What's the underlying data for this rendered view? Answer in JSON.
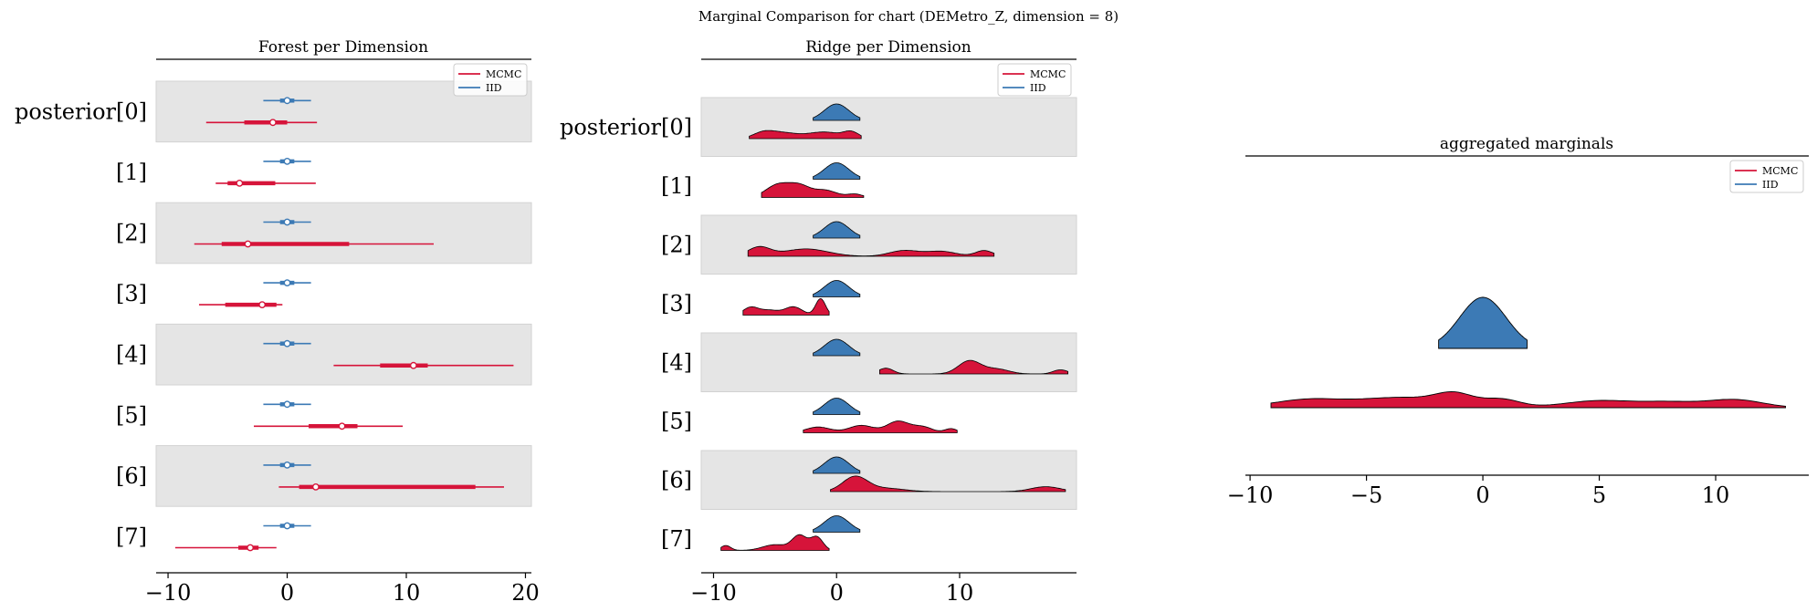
{
  "suptitle": "Marginal Comparison for chart (DEMetro_Z, dimension = 8)",
  "colors": {
    "mcmc": "#d6143a",
    "iid": "#3c7ab5",
    "band": "#e5e5e5",
    "axis": "#000000"
  },
  "chart_data": [
    {
      "type": "forest",
      "title": "Forest per Dimension",
      "row_labels": [
        "posterior[0]",
        "[1]",
        "[2]",
        "[3]",
        "[4]",
        "[5]",
        "[6]",
        "[7]"
      ],
      "xlim": [
        -11,
        20.5
      ],
      "xticks": [
        -10,
        0,
        10,
        20
      ],
      "xtick_labels": [
        "−10",
        "0",
        "10",
        "20"
      ],
      "legend": {
        "placement": "top-right",
        "entries": [
          "MCMC",
          "IID"
        ]
      },
      "series": [
        {
          "name": "IID",
          "rows": [
            {
              "lo": -2.0,
              "q1": -0.6,
              "med": 0.0,
              "q3": 0.6,
              "hi": 2.0
            },
            {
              "lo": -2.0,
              "q1": -0.6,
              "med": 0.0,
              "q3": 0.6,
              "hi": 2.0
            },
            {
              "lo": -2.0,
              "q1": -0.6,
              "med": 0.0,
              "q3": 0.6,
              "hi": 2.0
            },
            {
              "lo": -2.0,
              "q1": -0.6,
              "med": 0.0,
              "q3": 0.6,
              "hi": 2.0
            },
            {
              "lo": -2.0,
              "q1": -0.6,
              "med": 0.0,
              "q3": 0.6,
              "hi": 2.0
            },
            {
              "lo": -2.0,
              "q1": -0.6,
              "med": 0.0,
              "q3": 0.6,
              "hi": 2.0
            },
            {
              "lo": -2.0,
              "q1": -0.6,
              "med": 0.0,
              "q3": 0.6,
              "hi": 2.0
            },
            {
              "lo": -2.0,
              "q1": -0.6,
              "med": 0.0,
              "q3": 0.6,
              "hi": 2.0
            }
          ]
        },
        {
          "name": "MCMC",
          "rows": [
            {
              "lo": -6.8,
              "q1": -3.6,
              "med": -1.2,
              "q3": 0.0,
              "hi": 2.5
            },
            {
              "lo": -6.0,
              "q1": -5.0,
              "med": -4.0,
              "q3": -1.0,
              "hi": 2.4
            },
            {
              "lo": -7.8,
              "q1": -5.5,
              "med": -3.3,
              "q3": 5.2,
              "hi": 12.3
            },
            {
              "lo": -7.4,
              "q1": -5.2,
              "med": -2.1,
              "q3": -0.9,
              "hi": -0.4
            },
            {
              "lo": 3.9,
              "q1": 7.8,
              "med": 10.6,
              "q3": 11.8,
              "hi": 19.0
            },
            {
              "lo": -2.8,
              "q1": 1.8,
              "med": 4.6,
              "q3": 5.9,
              "hi": 9.7
            },
            {
              "lo": -0.7,
              "q1": 1.0,
              "med": 2.4,
              "q3": 15.8,
              "hi": 18.2
            },
            {
              "lo": -9.4,
              "q1": -4.1,
              "med": -3.1,
              "q3": -2.4,
              "hi": -0.9
            }
          ]
        }
      ]
    },
    {
      "type": "ridge",
      "title": "Ridge per Dimension",
      "row_labels": [
        "posterior[0]",
        "[1]",
        "[2]",
        "[3]",
        "[4]",
        "[5]",
        "[6]",
        "[7]"
      ],
      "xlim": [
        -11,
        19.5
      ],
      "xticks": [
        -10,
        0,
        10
      ],
      "xtick_labels": [
        "−10",
        "0",
        "10"
      ],
      "legend": {
        "placement": "top-right",
        "entries": [
          "MCMC",
          "IID"
        ]
      },
      "iid_range": [
        -1.9,
        1.9
      ],
      "mcmc_rows": [
        {
          "range": [
            -7.1,
            2.0
          ],
          "peaks": [
            [
              -1.0,
              0.4,
              1.4
            ],
            [
              -4.5,
              0.35,
              1.2
            ],
            [
              -6.0,
              0.3,
              0.8
            ],
            [
              1.2,
              0.35,
              0.6
            ]
          ]
        },
        {
          "range": [
            -6.1,
            2.2
          ],
          "peaks": [
            [
              -4.7,
              0.8,
              1.0
            ],
            [
              -3.0,
              0.6,
              0.8
            ],
            [
              -1.0,
              0.45,
              1.0
            ],
            [
              1.5,
              0.2,
              0.6
            ]
          ]
        },
        {
          "range": [
            -7.2,
            12.8
          ],
          "peaks": [
            [
              -6.3,
              0.55,
              0.9
            ],
            [
              -2.5,
              0.45,
              1.8
            ],
            [
              5.5,
              0.35,
              1.2
            ],
            [
              8.5,
              0.3,
              1.2
            ],
            [
              12.0,
              0.35,
              0.7
            ]
          ]
        },
        {
          "range": [
            -7.6,
            -0.6
          ],
          "peaks": [
            [
              -7.0,
              0.45,
              0.6
            ],
            [
              -5.5,
              0.3,
              0.8
            ],
            [
              -3.5,
              0.5,
              0.7
            ],
            [
              -1.3,
              1.0,
              0.4
            ]
          ]
        },
        {
          "range": [
            3.5,
            18.8
          ],
          "peaks": [
            [
              4.0,
              0.35,
              0.6
            ],
            [
              10.8,
              0.8,
              0.9
            ],
            [
              13.0,
              0.3,
              1.0
            ],
            [
              18.2,
              0.25,
              0.6
            ]
          ]
        },
        {
          "range": [
            -2.7,
            9.8
          ],
          "peaks": [
            [
              -1.5,
              0.35,
              1.0
            ],
            [
              2.0,
              0.45,
              1.0
            ],
            [
              5.0,
              0.7,
              0.9
            ],
            [
              7.0,
              0.35,
              0.8
            ],
            [
              9.3,
              0.25,
              0.5
            ]
          ]
        },
        {
          "range": [
            -0.5,
            18.6
          ],
          "peaks": [
            [
              1.5,
              0.9,
              1.0
            ],
            [
              4.0,
              0.2,
              1.5
            ],
            [
              17.0,
              0.3,
              1.2
            ]
          ]
        },
        {
          "range": [
            -9.4,
            -0.6
          ],
          "peaks": [
            [
              -9.0,
              0.3,
              0.4
            ],
            [
              -5.0,
              0.35,
              1.0
            ],
            [
              -3.0,
              0.9,
              0.6
            ],
            [
              -1.6,
              0.8,
              0.5
            ]
          ]
        }
      ]
    },
    {
      "type": "ridge",
      "title": "aggregated marginals",
      "xlim": [
        -10.2,
        14.0
      ],
      "xticks": [
        -10,
        -5,
        0,
        5,
        10
      ],
      "xtick_labels": [
        "−10",
        "−5",
        "0",
        "5",
        "10"
      ],
      "legend": {
        "placement": "top-right",
        "entries": [
          "MCMC",
          "IID"
        ]
      },
      "iid_range": [
        -1.9,
        1.9
      ],
      "mcmc_range": [
        -9.1,
        13.0
      ],
      "mcmc_peaks": [
        [
          -7.5,
          0.4,
          1.5
        ],
        [
          -3.5,
          0.5,
          1.8
        ],
        [
          -1.2,
          0.55,
          0.8
        ],
        [
          0.8,
          0.4,
          0.8
        ],
        [
          5.0,
          0.35,
          1.5
        ],
        [
          8.0,
          0.25,
          1.2
        ],
        [
          10.8,
          0.4,
          1.2
        ]
      ]
    }
  ]
}
